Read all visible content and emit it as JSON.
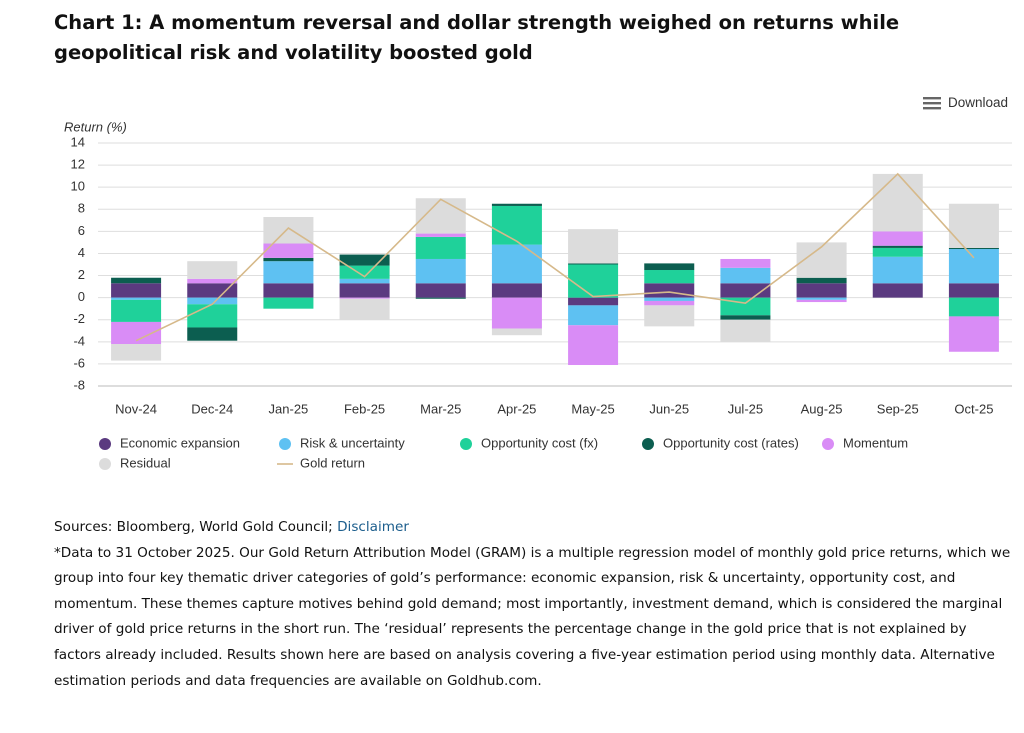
{
  "chart_data": {
    "type": "bar",
    "title": "Chart 1: A momentum reversal and dollar strength weighed on returns while geopolitical risk and volatility boosted gold",
    "y_label": "Return (%)",
    "stacked": true,
    "grid": true,
    "categories": [
      "Nov-24",
      "Dec-24",
      "Jan-25",
      "Feb-25",
      "Mar-25",
      "Apr-25",
      "May-25",
      "Jun-25",
      "Jul-25",
      "Aug-25",
      "Sep-25",
      "Oct-25"
    ],
    "ylim": [
      -8,
      14
    ],
    "yticks": [
      -8,
      -6,
      -4,
      -2,
      0,
      2,
      4,
      6,
      8,
      10,
      12,
      14
    ],
    "series": [
      {
        "name": "Economic expansion",
        "color": "#5b3a80",
        "values": [
          1.3,
          1.3,
          1.3,
          1.3,
          1.3,
          1.3,
          -0.7,
          1.3,
          1.3,
          1.3,
          1.3,
          1.3
        ]
      },
      {
        "name": "Risk & uncertainty",
        "color": "#5ec1f2",
        "values": [
          -0.2,
          -0.6,
          2.0,
          0.4,
          2.2,
          3.5,
          -1.8,
          -0.3,
          1.4,
          -0.2,
          2.4,
          3.1
        ]
      },
      {
        "name": "Opportunity cost (fx)",
        "color": "#1fd19a",
        "values": [
          -2.0,
          -2.1,
          -1.0,
          1.2,
          2.0,
          3.5,
          3.0,
          1.2,
          -1.6,
          0.0,
          0.8,
          -1.7
        ]
      },
      {
        "name": "Opportunity cost (rates)",
        "color": "#0c5e50",
        "values": [
          0.5,
          -1.2,
          0.3,
          1.0,
          -0.1,
          0.2,
          0.1,
          0.6,
          -0.4,
          0.5,
          0.2,
          0.1
        ]
      },
      {
        "name": "Momentum",
        "color": "#d98cf6",
        "values": [
          -2.0,
          0.4,
          1.3,
          -0.1,
          0.3,
          -2.8,
          -3.6,
          -0.4,
          0.8,
          -0.2,
          1.3,
          -3.2
        ]
      },
      {
        "name": "Residual",
        "color": "#dcdcdc",
        "values": [
          -1.5,
          1.6,
          2.4,
          -1.9,
          3.2,
          -0.6,
          3.1,
          -1.9,
          -2.0,
          3.2,
          5.2,
          4.0
        ]
      },
      {
        "name": "Gold return",
        "color": "#d6b98a",
        "type": "line",
        "values": [
          -3.9,
          -0.6,
          6.3,
          1.9,
          8.9,
          5.1,
          0.1,
          0.5,
          -0.5,
          4.6,
          11.2,
          3.6
        ]
      }
    ]
  },
  "download": "Download",
  "sources": {
    "text": "Sources: Bloomberg, World Gold Council;",
    "link": "Disclaimer"
  },
  "note": "*Data to 31 October 2025. Our Gold Return Attribution Model (GRAM) is a multiple regression model of monthly gold price returns, which we group into four key thematic driver categories of gold’s performance: economic expansion, risk & uncertainty, opportunity cost, and momentum. These themes capture motives behind gold demand; most importantly, investment demand, which is considered the marginal driver of gold price returns in the short run. The ‘residual’ represents the percentage change in the gold price that is not explained by factors already included. Results shown here are based on analysis covering a five-year estimation period using monthly data. Alternative estimation periods and data frequencies are available on Goldhub.com."
}
